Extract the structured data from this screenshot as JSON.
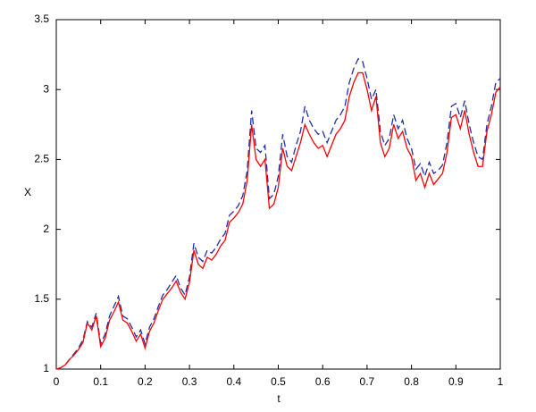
{
  "chart_data": {
    "type": "line",
    "xlabel": "t",
    "ylabel": "X",
    "x": [
      0,
      0.01,
      0.02,
      0.03,
      0.04,
      0.05,
      0.06,
      0.07,
      0.08,
      0.09,
      0.1,
      0.11,
      0.12,
      0.13,
      0.14,
      0.15,
      0.16,
      0.17,
      0.18,
      0.19,
      0.2,
      0.21,
      0.22,
      0.23,
      0.24,
      0.25,
      0.26,
      0.27,
      0.28,
      0.29,
      0.3,
      0.31,
      0.32,
      0.33,
      0.34,
      0.35,
      0.36,
      0.37,
      0.38,
      0.39,
      0.4,
      0.41,
      0.42,
      0.43,
      0.44,
      0.45,
      0.46,
      0.47,
      0.48,
      0.49,
      0.5,
      0.51,
      0.52,
      0.53,
      0.54,
      0.55,
      0.56,
      0.57,
      0.58,
      0.59,
      0.6,
      0.61,
      0.62,
      0.63,
      0.64,
      0.65,
      0.66,
      0.67,
      0.68,
      0.69,
      0.7,
      0.71,
      0.72,
      0.73,
      0.74,
      0.75,
      0.76,
      0.77,
      0.78,
      0.79,
      0.8,
      0.81,
      0.82,
      0.83,
      0.84,
      0.85,
      0.86,
      0.87,
      0.88,
      0.89,
      0.9,
      0.91,
      0.92,
      0.93,
      0.94,
      0.95,
      0.96,
      0.97,
      0.98,
      0.99,
      1
    ],
    "series": [
      {
        "color": "#1f2fa8",
        "line_style": "dashed",
        "values": [
          1.0,
          1.01,
          1.03,
          1.07,
          1.11,
          1.15,
          1.21,
          1.34,
          1.3,
          1.4,
          1.18,
          1.25,
          1.38,
          1.45,
          1.52,
          1.38,
          1.36,
          1.3,
          1.23,
          1.28,
          1.18,
          1.3,
          1.36,
          1.45,
          1.53,
          1.57,
          1.62,
          1.67,
          1.58,
          1.53,
          1.66,
          1.9,
          1.8,
          1.77,
          1.85,
          1.83,
          1.87,
          1.93,
          1.97,
          2.1,
          2.13,
          2.17,
          2.24,
          2.42,
          2.85,
          2.58,
          2.55,
          2.6,
          2.22,
          2.25,
          2.38,
          2.68,
          2.52,
          2.48,
          2.6,
          2.7,
          2.88,
          2.78,
          2.72,
          2.68,
          2.7,
          2.62,
          2.7,
          2.78,
          2.82,
          2.88,
          3.05,
          3.15,
          3.22,
          3.2,
          3.08,
          2.93,
          3.0,
          2.7,
          2.6,
          2.65,
          2.82,
          2.72,
          2.78,
          2.65,
          2.58,
          2.43,
          2.47,
          2.38,
          2.48,
          2.4,
          2.42,
          2.46,
          2.62,
          2.88,
          2.9,
          2.8,
          2.92,
          2.75,
          2.62,
          2.52,
          2.5,
          2.75,
          2.88,
          3.05,
          3.08
        ]
      },
      {
        "color": "#ff0000",
        "line_style": "solid",
        "values": [
          1.0,
          1.01,
          1.03,
          1.07,
          1.1,
          1.14,
          1.19,
          1.33,
          1.28,
          1.38,
          1.16,
          1.22,
          1.35,
          1.41,
          1.48,
          1.35,
          1.33,
          1.27,
          1.2,
          1.25,
          1.15,
          1.27,
          1.33,
          1.42,
          1.5,
          1.54,
          1.58,
          1.63,
          1.55,
          1.5,
          1.62,
          1.85,
          1.75,
          1.72,
          1.8,
          1.78,
          1.82,
          1.88,
          1.92,
          2.05,
          2.08,
          2.12,
          2.18,
          2.35,
          2.75,
          2.5,
          2.45,
          2.5,
          2.15,
          2.18,
          2.3,
          2.58,
          2.45,
          2.42,
          2.52,
          2.62,
          2.75,
          2.68,
          2.62,
          2.58,
          2.6,
          2.52,
          2.6,
          2.68,
          2.72,
          2.78,
          2.95,
          3.05,
          3.12,
          3.12,
          3.0,
          2.85,
          2.95,
          2.62,
          2.52,
          2.58,
          2.75,
          2.65,
          2.7,
          2.58,
          2.52,
          2.35,
          2.4,
          2.3,
          2.4,
          2.32,
          2.36,
          2.4,
          2.55,
          2.8,
          2.82,
          2.72,
          2.85,
          2.68,
          2.55,
          2.45,
          2.45,
          2.7,
          2.82,
          2.98,
          3.02
        ]
      }
    ],
    "xlim": [
      0,
      1
    ],
    "ylim": [
      1,
      3.5
    ],
    "xticks": [
      0,
      0.1,
      0.2,
      0.3,
      0.4,
      0.5,
      0.6,
      0.7,
      0.8,
      0.9,
      1
    ],
    "yticks": [
      1,
      1.5,
      2,
      2.5,
      3,
      3.5
    ],
    "grid": false
  }
}
